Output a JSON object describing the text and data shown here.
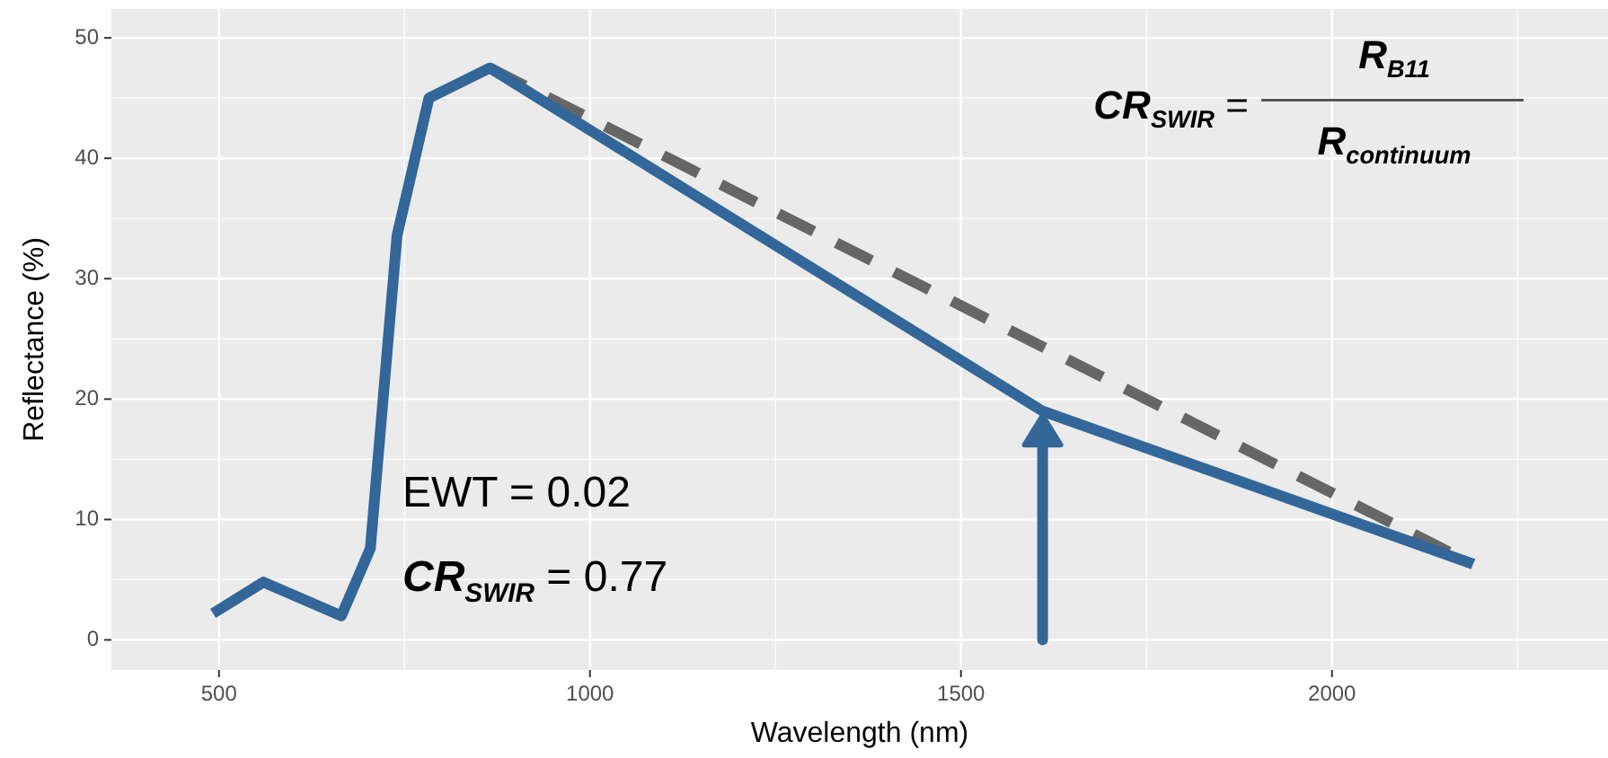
{
  "chart_data": {
    "type": "line",
    "xlabel": "Wavelength (nm)",
    "ylabel": "Reflectance (%)",
    "xlim": [
      355,
      2372
    ],
    "ylim": [
      -2.5,
      52.4
    ],
    "xticks": [
      500,
      1000,
      1500,
      2000
    ],
    "yticks": [
      0,
      10,
      20,
      30,
      40,
      50
    ],
    "grid": true,
    "series": [
      {
        "color": "#336699",
        "x": [
          492,
          560,
          665,
          704,
          740,
          783,
          865,
          1610,
          2190
        ],
        "values": [
          2.2,
          4.8,
          2.0,
          7.6,
          33.6,
          45,
          47.5,
          19,
          6.3
        ],
        "line_style": "solid"
      },
      {
        "color": "#666666",
        "x": [
          865,
          2190
        ],
        "values": [
          47.5,
          6.3
        ],
        "line_style": "dashed"
      }
    ],
    "annotations": [
      "EWT =  0.02",
      "CR$_{SWIR}$ = 0.77",
      "CR$_{SWIR}$ =",
      "R$_{B11}$",
      "R$_{continuum}$"
    ]
  }
}
